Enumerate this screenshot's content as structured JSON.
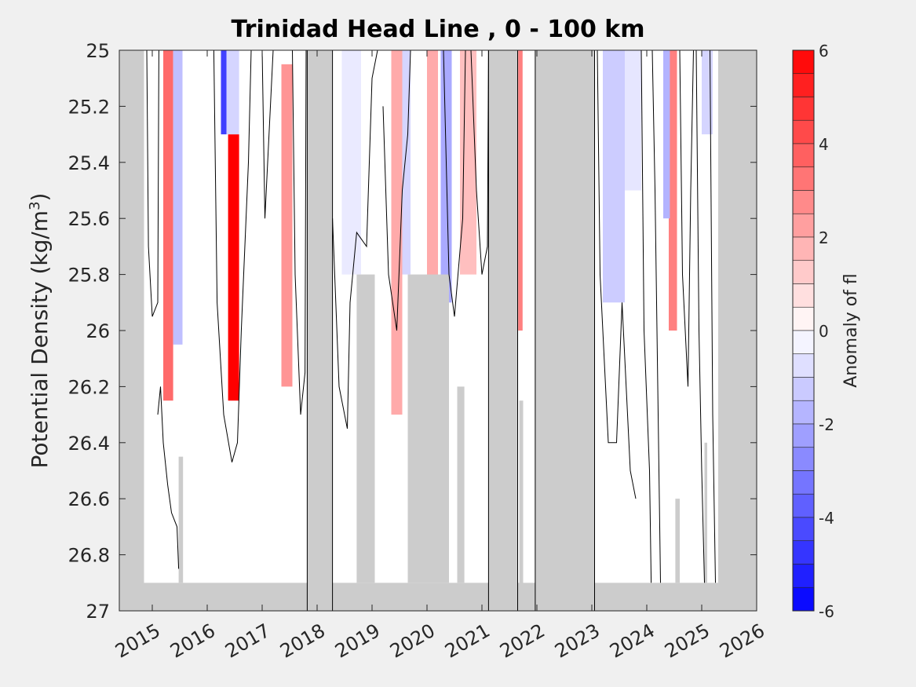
{
  "chart_data": {
    "type": "heatmap",
    "title": "Trinidad Head Line , 0 - 100 km",
    "xlabel": "",
    "ylabel": "Potential Density (kg/m",
    "ylabel_superscript": "3",
    "ylabel_close": ")",
    "xlim": [
      2014.4,
      2026.0
    ],
    "ylim": [
      25.0,
      27.0
    ],
    "y_reversed": true,
    "x_tick_labels": [
      "2015",
      "2016",
      "2017",
      "2018",
      "2019",
      "2020",
      "2021",
      "2022",
      "2023",
      "2024",
      "2025",
      "2026"
    ],
    "x_ticks": [
      2015,
      2016,
      2017,
      2018,
      2019,
      2020,
      2021,
      2022,
      2023,
      2024,
      2025,
      2026
    ],
    "y_tick_labels": [
      "25",
      "25.2",
      "25.4",
      "25.6",
      "25.8",
      "26",
      "26.2",
      "26.4",
      "26.6",
      "26.8",
      "27"
    ],
    "y_ticks": [
      25.0,
      25.2,
      25.4,
      25.6,
      25.8,
      26.0,
      26.2,
      26.4,
      26.6,
      26.8,
      27.0
    ],
    "colorbar": {
      "label": "Anomaly of fl",
      "range": [
        -6,
        6
      ],
      "tick_labels": [
        "6",
        "4",
        "2",
        "0",
        "-2",
        "-4",
        "-6"
      ],
      "ticks": [
        6,
        4,
        2,
        0,
        -2,
        -4,
        -6
      ],
      "levels": 24,
      "low_color": "#0000ff",
      "high_color": "#ff0000",
      "mid_color": "#ffffff"
    },
    "no_data_color": "#cccccc",
    "no_data_regions": [
      {
        "x": [
          2014.4,
          2014.85
        ],
        "y": [
          25.0,
          27.0
        ]
      },
      {
        "x": [
          2014.4,
          2026.0
        ],
        "y": [
          26.9,
          27.0
        ]
      },
      {
        "x": [
          2017.82,
          2018.28
        ],
        "y": [
          25.0,
          27.0
        ],
        "outlined": true
      },
      {
        "x": [
          2021.12,
          2021.65
        ],
        "y": [
          25.0,
          27.0
        ],
        "outlined": true
      },
      {
        "x": [
          2021.68,
          2021.75
        ],
        "y": [
          26.25,
          27.0
        ]
      },
      {
        "x": [
          2021.97,
          2023.05
        ],
        "y": [
          25.0,
          27.0
        ],
        "outlined": true
      },
      {
        "x": [
          2025.3,
          2026.0
        ],
        "y": [
          25.0,
          27.0
        ]
      },
      {
        "x": [
          2018.72,
          2019.05
        ],
        "y": [
          25.8,
          26.9
        ]
      },
      {
        "x": [
          2019.65,
          2020.4
        ],
        "y": [
          25.8,
          26.9
        ]
      },
      {
        "x": [
          2020.55,
          2020.68
        ],
        "y": [
          26.2,
          26.9
        ]
      },
      {
        "x": [
          2024.52,
          2024.6
        ],
        "y": [
          26.6,
          26.9
        ]
      },
      {
        "x": [
          2025.05,
          2025.1
        ],
        "y": [
          26.4,
          26.9
        ]
      },
      {
        "x": [
          2015.48,
          2015.56
        ],
        "y": [
          26.45,
          26.9
        ]
      }
    ],
    "anomaly_bands": [
      {
        "x": [
          2015.2,
          2015.38
        ],
        "y": [
          25.0,
          26.25
        ],
        "value": 3.5
      },
      {
        "x": [
          2015.38,
          2015.55
        ],
        "y": [
          25.0,
          26.05
        ],
        "value": -1.5
      },
      {
        "x": [
          2016.25,
          2016.35
        ],
        "y": [
          25.0,
          25.3
        ],
        "value": -4.5
      },
      {
        "x": [
          2016.38,
          2016.58
        ],
        "y": [
          25.3,
          26.25
        ],
        "value": 6.0
      },
      {
        "x": [
          2016.35,
          2016.58
        ],
        "y": [
          25.0,
          25.3
        ],
        "value": -1.0
      },
      {
        "x": [
          2017.35,
          2017.55
        ],
        "y": [
          25.05,
          26.2
        ],
        "value": 2.5
      },
      {
        "x": [
          2018.45,
          2018.8
        ],
        "y": [
          25.0,
          25.8
        ],
        "value": -0.5
      },
      {
        "x": [
          2019.35,
          2019.55
        ],
        "y": [
          25.0,
          26.3
        ],
        "value": 2.0
      },
      {
        "x": [
          2019.55,
          2019.7
        ],
        "y": [
          25.0,
          25.8
        ],
        "value": -1.0
      },
      {
        "x": [
          2020.0,
          2020.2
        ],
        "y": [
          25.0,
          26.0
        ],
        "value": 2.0
      },
      {
        "x": [
          2020.25,
          2020.45
        ],
        "y": [
          25.0,
          25.9
        ],
        "value": -2.0
      },
      {
        "x": [
          2020.6,
          2020.9
        ],
        "y": [
          25.0,
          25.8
        ],
        "value": 1.5
      },
      {
        "x": [
          2021.66,
          2021.74
        ],
        "y": [
          25.0,
          26.0
        ],
        "value": 3.0
      },
      {
        "x": [
          2023.2,
          2023.6
        ],
        "y": [
          25.0,
          25.9
        ],
        "value": -1.2
      },
      {
        "x": [
          2023.6,
          2023.9
        ],
        "y": [
          25.0,
          25.5
        ],
        "value": -0.6
      },
      {
        "x": [
          2024.4,
          2024.55
        ],
        "y": [
          25.0,
          26.0
        ],
        "value": 3.0
      },
      {
        "x": [
          2024.3,
          2024.42
        ],
        "y": [
          25.0,
          25.6
        ],
        "value": -1.8
      },
      {
        "x": [
          2025.0,
          2025.2
        ],
        "y": [
          25.0,
          25.3
        ],
        "value": -1.0
      }
    ],
    "zero_contours": [
      [
        [
          2014.9,
          25.0
        ],
        [
          2014.93,
          25.7
        ],
        [
          2015.0,
          25.95
        ],
        [
          2015.1,
          25.9
        ],
        [
          2015.12,
          25.0
        ]
      ],
      [
        [
          2015.1,
          26.3
        ],
        [
          2015.15,
          26.2
        ],
        [
          2015.2,
          26.4
        ],
        [
          2015.28,
          26.55
        ],
        [
          2015.35,
          26.65
        ],
        [
          2015.45,
          26.7
        ],
        [
          2015.48,
          26.85
        ]
      ],
      [
        [
          2016.12,
          25.0
        ],
        [
          2016.18,
          25.9
        ],
        [
          2016.3,
          26.3
        ],
        [
          2016.45,
          26.47
        ],
        [
          2016.55,
          26.4
        ],
        [
          2016.62,
          26.0
        ],
        [
          2016.75,
          25.4
        ],
        [
          2016.8,
          25.0
        ]
      ],
      [
        [
          2017.0,
          25.0
        ],
        [
          2017.05,
          25.6
        ],
        [
          2017.15,
          25.2
        ],
        [
          2017.2,
          25.0
        ]
      ],
      [
        [
          2017.55,
          25.0
        ],
        [
          2017.6,
          25.8
        ],
        [
          2017.7,
          26.3
        ],
        [
          2017.78,
          26.15
        ],
        [
          2017.8,
          25.0
        ]
      ],
      [
        [
          2018.28,
          25.6
        ],
        [
          2018.4,
          26.2
        ],
        [
          2018.55,
          26.35
        ],
        [
          2018.6,
          25.9
        ],
        [
          2018.72,
          25.65
        ],
        [
          2018.9,
          25.7
        ],
        [
          2019.0,
          25.1
        ],
        [
          2019.1,
          25.0
        ]
      ],
      [
        [
          2019.2,
          25.2
        ],
        [
          2019.3,
          25.8
        ],
        [
          2019.45,
          26.0
        ],
        [
          2019.55,
          25.5
        ],
        [
          2019.65,
          25.3
        ],
        [
          2019.7,
          25.0
        ]
      ],
      [
        [
          2020.3,
          25.0
        ],
        [
          2020.4,
          25.8
        ],
        [
          2020.5,
          25.95
        ],
        [
          2020.65,
          25.6
        ],
        [
          2020.7,
          25.0
        ]
      ],
      [
        [
          2020.8,
          25.0
        ],
        [
          2020.9,
          25.5
        ],
        [
          2021.0,
          25.8
        ],
        [
          2021.1,
          25.7
        ],
        [
          2021.12,
          25.0
        ]
      ],
      [
        [
          2023.1,
          25.0
        ],
        [
          2023.15,
          25.8
        ],
        [
          2023.3,
          26.4
        ],
        [
          2023.45,
          26.4
        ],
        [
          2023.55,
          25.9
        ],
        [
          2023.7,
          26.5
        ],
        [
          2023.8,
          26.6
        ]
      ],
      [
        [
          2023.9,
          25.0
        ],
        [
          2023.95,
          26.0
        ],
        [
          2024.05,
          26.5
        ],
        [
          2024.08,
          26.9
        ]
      ],
      [
        [
          2024.1,
          25.0
        ],
        [
          2024.15,
          25.5
        ],
        [
          2024.2,
          26.2
        ],
        [
          2024.25,
          26.9
        ]
      ],
      [
        [
          2024.6,
          25.0
        ],
        [
          2024.65,
          25.8
        ],
        [
          2024.75,
          26.2
        ],
        [
          2024.8,
          25.5
        ],
        [
          2024.85,
          25.0
        ]
      ],
      [
        [
          2024.9,
          25.0
        ],
        [
          2024.95,
          26.0
        ],
        [
          2025.0,
          26.5
        ],
        [
          2025.05,
          26.9
        ]
      ],
      [
        [
          2025.15,
          25.0
        ],
        [
          2025.2,
          26.3
        ],
        [
          2025.25,
          26.9
        ]
      ]
    ]
  }
}
